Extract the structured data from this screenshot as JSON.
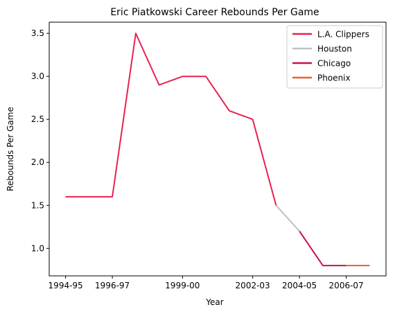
{
  "chart_data": {
    "type": "line",
    "title": "Eric Piatkowski Career Rebounds Per Game",
    "xlabel": "Year",
    "ylabel": "Rebounds Per Game",
    "x_tick_labels": [
      "1994-95",
      "1996-97",
      "1999-00",
      "2002-03",
      "2004-05",
      "2006-07"
    ],
    "y_ticks": [
      1.0,
      1.5,
      2.0,
      2.5,
      3.0,
      3.5
    ],
    "y_tick_labels": [
      "1.0",
      "1.5",
      "2.0",
      "2.5",
      "3.0",
      "3.5"
    ],
    "ylim": [
      0.68,
      3.63
    ],
    "x_seasons": [
      "1994-95",
      "1995-96",
      "1996-97",
      "1997-98",
      "1998-99",
      "1999-00",
      "2000-01",
      "2001-02",
      "2002-03",
      "2003-04",
      "2004-05",
      "2005-06",
      "2006-07",
      "2007-08"
    ],
    "legend_position": "top-right",
    "series": [
      {
        "name": "L.A. Clippers",
        "color": "#e8214f",
        "points": [
          [
            "1994-95",
            1.6
          ],
          [
            "1995-96",
            1.6
          ],
          [
            "1996-97",
            1.6
          ],
          [
            "1997-98",
            3.5
          ],
          [
            "1998-99",
            2.9
          ],
          [
            "1999-00",
            3.0
          ],
          [
            "2000-01",
            3.0
          ],
          [
            "2001-02",
            2.6
          ],
          [
            "2002-03",
            2.5
          ],
          [
            "2003-04",
            1.5
          ]
        ]
      },
      {
        "name": "Houston",
        "color": "#c0c0c0",
        "points": [
          [
            "2003-04",
            1.5
          ],
          [
            "2004-05",
            1.2
          ]
        ]
      },
      {
        "name": "Chicago",
        "color": "#cc1144",
        "points": [
          [
            "2004-05",
            1.2
          ],
          [
            "2005-06",
            0.8
          ],
          [
            "2006-07",
            0.8
          ]
        ]
      },
      {
        "name": "Phoenix",
        "color": "#e8622a",
        "points": [
          [
            "2006-07",
            0.8
          ],
          [
            "2007-08",
            0.8
          ]
        ]
      }
    ]
  }
}
